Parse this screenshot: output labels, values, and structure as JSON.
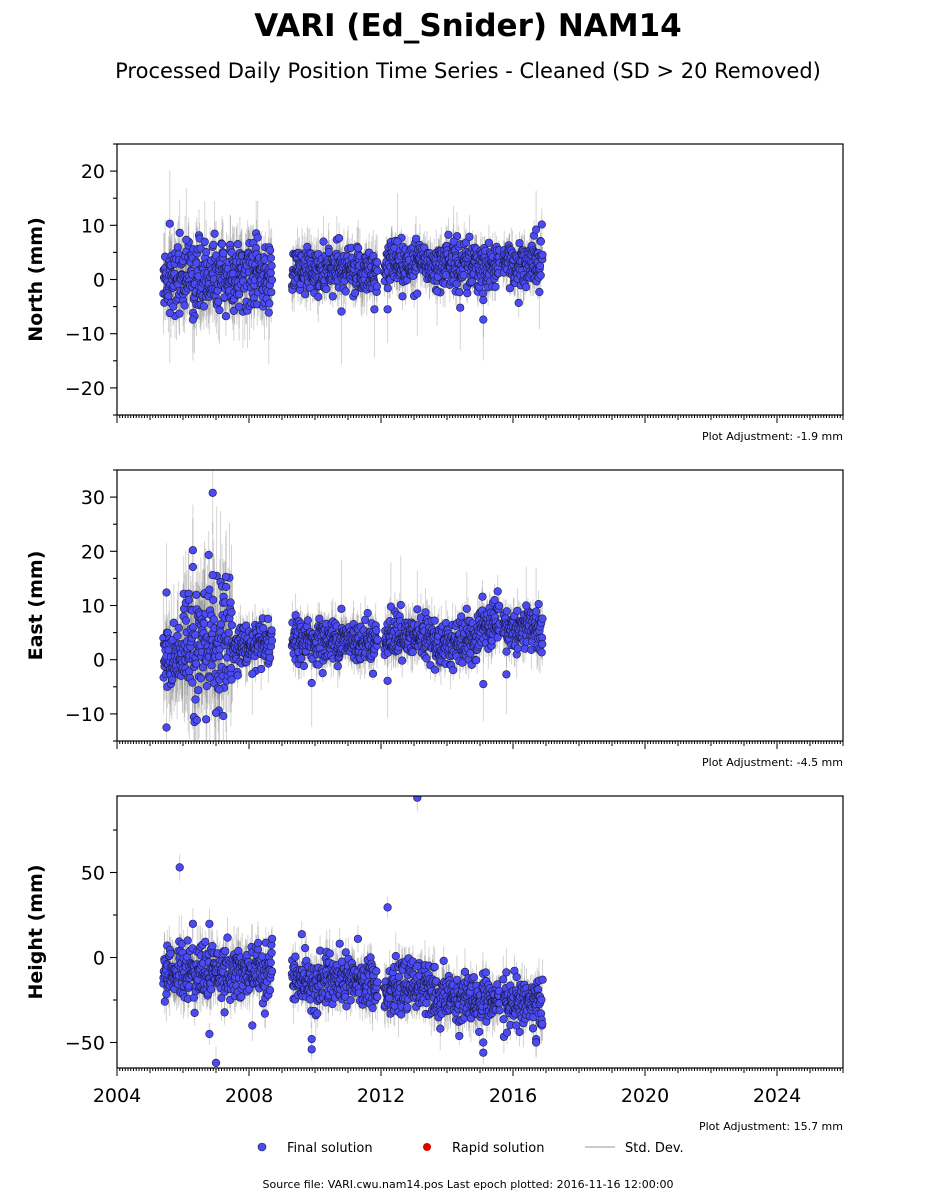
{
  "title": "VARI (Ed_Snider) NAM14",
  "subtitle": "Processed Daily Position Time Series - Cleaned (SD > 20 Removed)",
  "footer": "Source file: VARI.cwu.nam14.pos  Last epoch plotted: 2016-11-16 12:00:00",
  "colors": {
    "final": "#4b4bf5",
    "rapid": "#e00000",
    "stddev": "#b8b8b8"
  },
  "legend": [
    {
      "name": "final",
      "label": "Final solution",
      "color": "#4b4bf5",
      "kind": "dot"
    },
    {
      "name": "rapid",
      "label": "Rapid solution",
      "color": "#e00000",
      "kind": "dot"
    },
    {
      "name": "stddev",
      "label": "Std. Dev.",
      "color": "#b8b8b8",
      "kind": "line"
    }
  ],
  "chart_data": [
    {
      "type": "scatter",
      "component": "north",
      "ylabel": "North (mm)",
      "adjustment": "Plot Adjustment: -1.9 mm",
      "xlim": [
        2004,
        2026
      ],
      "ylim": [
        -25,
        25
      ],
      "yticks": [
        -20,
        -10,
        0,
        10,
        20
      ],
      "ytick_labels": [
        "−20",
        "−10",
        "0",
        "10",
        "20"
      ],
      "xticks": [
        2004,
        2008,
        2012,
        2016,
        2020,
        2024
      ],
      "xtick_labels": [],
      "segments": [
        {
          "x0": 2005.4,
          "x1": 2008.7,
          "mean": 0.5,
          "spread": 3.0,
          "sd": 5.0
        },
        {
          "x0": 2009.3,
          "x1": 2011.9,
          "mean": 1.5,
          "spread": 2.2,
          "sd": 3.5
        },
        {
          "x0": 2012.1,
          "x1": 2014.9,
          "mean": 3.0,
          "spread": 2.2,
          "sd": 3.0
        },
        {
          "x0": 2014.9,
          "x1": 2015.6,
          "mean": 2.0,
          "spread": 2.0,
          "sd": 3.0
        },
        {
          "x0": 2015.7,
          "x1": 2016.9,
          "mean": 3.0,
          "spread": 2.2,
          "sd": 3.0
        }
      ],
      "outliers": [
        [
          2005.6,
          10.3
        ],
        [
          2006.1,
          7.3
        ],
        [
          2005.9,
          8.6
        ],
        [
          2005.6,
          -6.2
        ],
        [
          2006.3,
          -7.4
        ],
        [
          2007.7,
          -5.0
        ],
        [
          2008.6,
          -6.1
        ],
        [
          2010.8,
          -5.9
        ],
        [
          2011.8,
          -5.5
        ],
        [
          2012.5,
          7.0
        ],
        [
          2012.2,
          -5.5
        ],
        [
          2013.1,
          -2.6
        ],
        [
          2014.4,
          -5.2
        ],
        [
          2015.1,
          -7.4
        ],
        [
          2015.1,
          -3.8
        ],
        [
          2016.7,
          9.2
        ],
        [
          2016.8,
          -2.3
        ],
        [
          2013.7,
          -2.2
        ],
        [
          2014.2,
          7.0
        ]
      ]
    },
    {
      "type": "scatter",
      "component": "east",
      "ylabel": "East (mm)",
      "adjustment": "Plot Adjustment: -4.5 mm",
      "xlim": [
        2004,
        2026
      ],
      "ylim": [
        -15,
        35
      ],
      "yticks": [
        -10,
        0,
        10,
        20,
        30
      ],
      "ytick_labels": [
        "−10",
        "0",
        "10",
        "20",
        "30"
      ],
      "xticks": [
        2004,
        2008,
        2012,
        2016,
        2020,
        2024
      ],
      "xtick_labels": [],
      "segments": [
        {
          "x0": 2005.4,
          "x1": 2006.0,
          "mean": 0.0,
          "spread": 2.5,
          "sd": 6.0
        },
        {
          "x0": 2006.0,
          "x1": 2007.5,
          "mean": 3.0,
          "spread": 5.5,
          "sd": 9.0
        },
        {
          "x0": 2007.5,
          "x1": 2008.7,
          "mean": 2.5,
          "spread": 1.8,
          "sd": 3.0
        },
        {
          "x0": 2009.3,
          "x1": 2011.9,
          "mean": 3.5,
          "spread": 1.8,
          "sd": 3.0
        },
        {
          "x0": 2012.1,
          "x1": 2013.6,
          "mean": 4.0,
          "spread": 1.8,
          "sd": 3.0
        },
        {
          "x0": 2013.6,
          "x1": 2014.9,
          "mean": 3.0,
          "spread": 2.0,
          "sd": 3.0
        },
        {
          "x0": 2014.9,
          "x1": 2015.6,
          "mean": 6.0,
          "spread": 2.0,
          "sd": 3.0
        },
        {
          "x0": 2015.7,
          "x1": 2016.9,
          "mean": 5.5,
          "spread": 2.0,
          "sd": 3.0
        }
      ],
      "outliers": [
        [
          2005.5,
          12.4
        ],
        [
          2005.5,
          -12.5
        ],
        [
          2006.3,
          20.2
        ],
        [
          2006.3,
          17.1
        ],
        [
          2006.9,
          30.8
        ],
        [
          2006.7,
          -11.0
        ],
        [
          2007.0,
          -9.8
        ],
        [
          2006.9,
          15.6
        ],
        [
          2007.3,
          15.3
        ],
        [
          2007.1,
          -5.5
        ],
        [
          2008.1,
          -2.6
        ],
        [
          2009.9,
          -4.3
        ],
        [
          2010.8,
          9.4
        ],
        [
          2012.2,
          -3.9
        ],
        [
          2012.3,
          9.8
        ],
        [
          2012.6,
          10.1
        ],
        [
          2013.1,
          9.3
        ],
        [
          2014.6,
          9.4
        ],
        [
          2015.1,
          -4.5
        ],
        [
          2015.8,
          -2.7
        ],
        [
          2016.4,
          10.0
        ],
        [
          2016.7,
          8.9
        ]
      ]
    },
    {
      "type": "scatter",
      "component": "height",
      "ylabel": "Height (mm)",
      "adjustment": "Plot Adjustment: 15.7 mm",
      "xlim": [
        2004,
        2026
      ],
      "ylim": [
        -65,
        95
      ],
      "yticks": [
        -50,
        0,
        50
      ],
      "ytick_labels": [
        "−50",
        "0",
        "50"
      ],
      "xticks": [
        2004,
        2008,
        2012,
        2016,
        2020,
        2024
      ],
      "xtick_labels": [
        "2004",
        "2008",
        "2012",
        "2016",
        "2020",
        "2024"
      ],
      "segments": [
        {
          "x0": 2005.4,
          "x1": 2008.7,
          "mean": -8.0,
          "spread": 8.0,
          "sd": 12.0
        },
        {
          "x0": 2009.3,
          "x1": 2011.9,
          "mean": -15.0,
          "spread": 7.0,
          "sd": 10.0
        },
        {
          "x0": 2012.1,
          "x1": 2013.6,
          "mean": -17.0,
          "spread": 7.0,
          "sd": 10.0
        },
        {
          "x0": 2013.6,
          "x1": 2015.6,
          "mean": -25.0,
          "spread": 7.0,
          "sd": 10.0
        },
        {
          "x0": 2015.7,
          "x1": 2016.9,
          "mean": -27.0,
          "spread": 7.0,
          "sd": 10.0
        }
      ],
      "outliers": [
        [
          2005.9,
          53.0
        ],
        [
          2006.8,
          -45.0
        ],
        [
          2007.0,
          -62.0
        ],
        [
          2006.3,
          19.8
        ],
        [
          2006.8,
          19.8
        ],
        [
          2008.1,
          -40.0
        ],
        [
          2008.7,
          11.0
        ],
        [
          2009.6,
          13.7
        ],
        [
          2009.9,
          -48.0
        ],
        [
          2009.9,
          -54.0
        ],
        [
          2009.7,
          5.5
        ],
        [
          2011.3,
          11.0
        ],
        [
          2012.2,
          29.5
        ],
        [
          2013.1,
          94.0
        ],
        [
          2013.1,
          -5.0
        ],
        [
          2013.9,
          -2.0
        ],
        [
          2015.1,
          -50.0
        ],
        [
          2015.1,
          -56.0
        ],
        [
          2016.7,
          -48.0
        ],
        [
          2016.7,
          -50.0
        ],
        [
          2016.1,
          -40.0
        ]
      ]
    }
  ]
}
